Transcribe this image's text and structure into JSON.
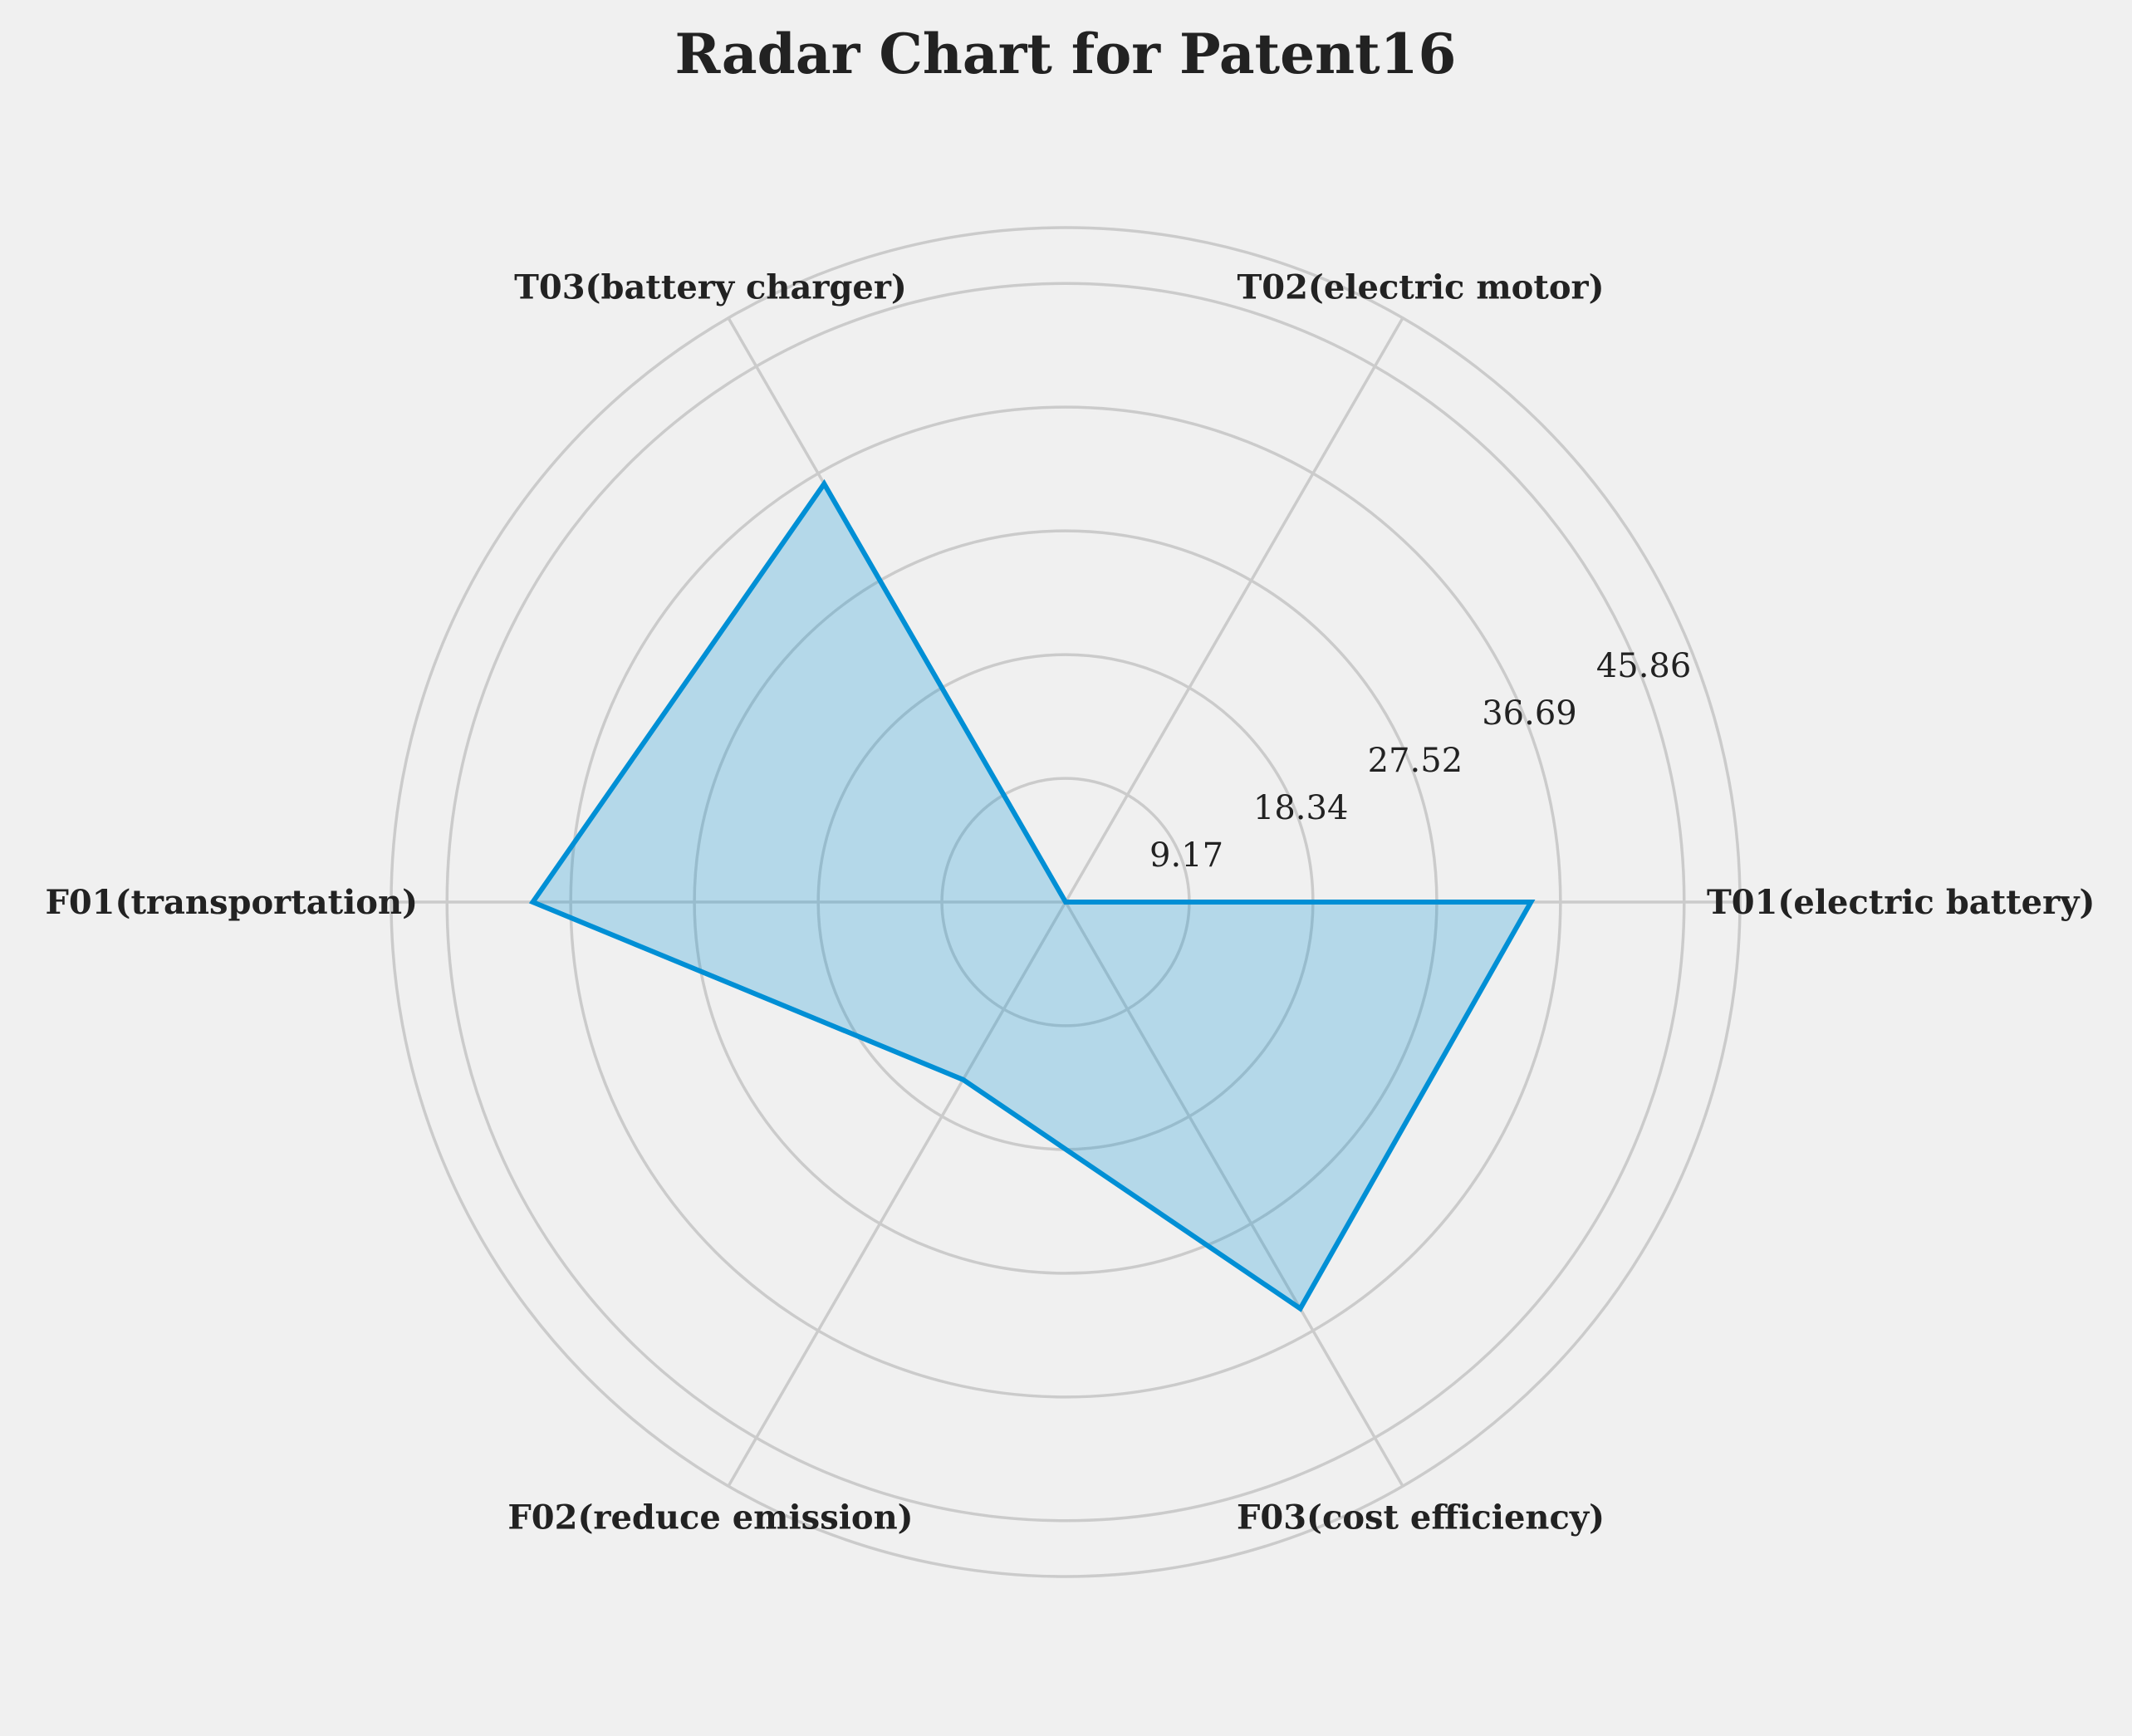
{
  "chart_data": {
    "type": "radar",
    "title": "Radar Chart for Patent16",
    "axes": [
      "T01(electric battery)",
      "T02(electric motor)",
      "T03(battery charger)",
      "F01(transportation)",
      "F02(reduce emission)",
      "F03(cost efficiency)"
    ],
    "values": [
      34.5,
      0,
      35.8,
      39.5,
      15.2,
      34.8
    ],
    "radial_ticks": [
      "9.17",
      "18.34",
      "27.52",
      "36.69",
      "45.86"
    ],
    "radial_tick_values": [
      9.17,
      18.34,
      27.52,
      36.69,
      45.86
    ],
    "rmax": 50,
    "grid": true,
    "colors": {
      "line": "#008fd5",
      "fill": "#008fd5",
      "grid": "#cbcbcb",
      "background": "#f0f0f0"
    }
  }
}
